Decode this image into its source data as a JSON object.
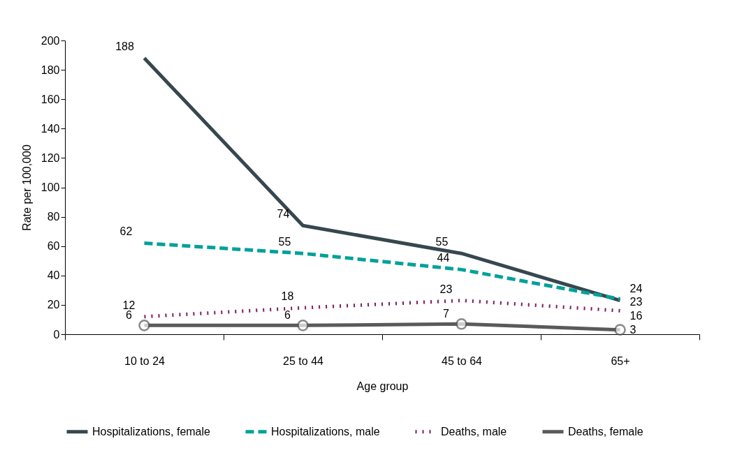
{
  "chart_data": {
    "type": "line",
    "xlabel": "Age group",
    "ylabel": "Rate per 100,000",
    "categories": [
      "10 to 24",
      "25 to 44",
      "45 to 64",
      "65+"
    ],
    "series": [
      {
        "name": "Hospitalizations, female",
        "color": "#37474f",
        "values": [
          188,
          74,
          55,
          23
        ],
        "line_style": "solid",
        "marker": "none"
      },
      {
        "name": "Hospitalizations, male",
        "color": "#00a19a",
        "values": [
          62,
          55,
          44,
          24
        ],
        "line_style": "dashed",
        "marker": "none"
      },
      {
        "name": "Deaths, male",
        "color": "#7b1c5e",
        "values": [
          12,
          18,
          23,
          16
        ],
        "line_style": "dotted",
        "marker": "none"
      },
      {
        "name": "Deaths, female",
        "color": "#5a5a5a",
        "values": [
          6,
          6,
          7,
          3
        ],
        "line_style": "solid",
        "marker": "circle"
      }
    ],
    "ylim": [
      0,
      200
    ],
    "yticks": [
      0,
      20,
      40,
      60,
      80,
      100,
      120,
      140,
      160,
      180,
      200
    ],
    "grid": false,
    "legend": "bottom",
    "data_labels": true
  }
}
